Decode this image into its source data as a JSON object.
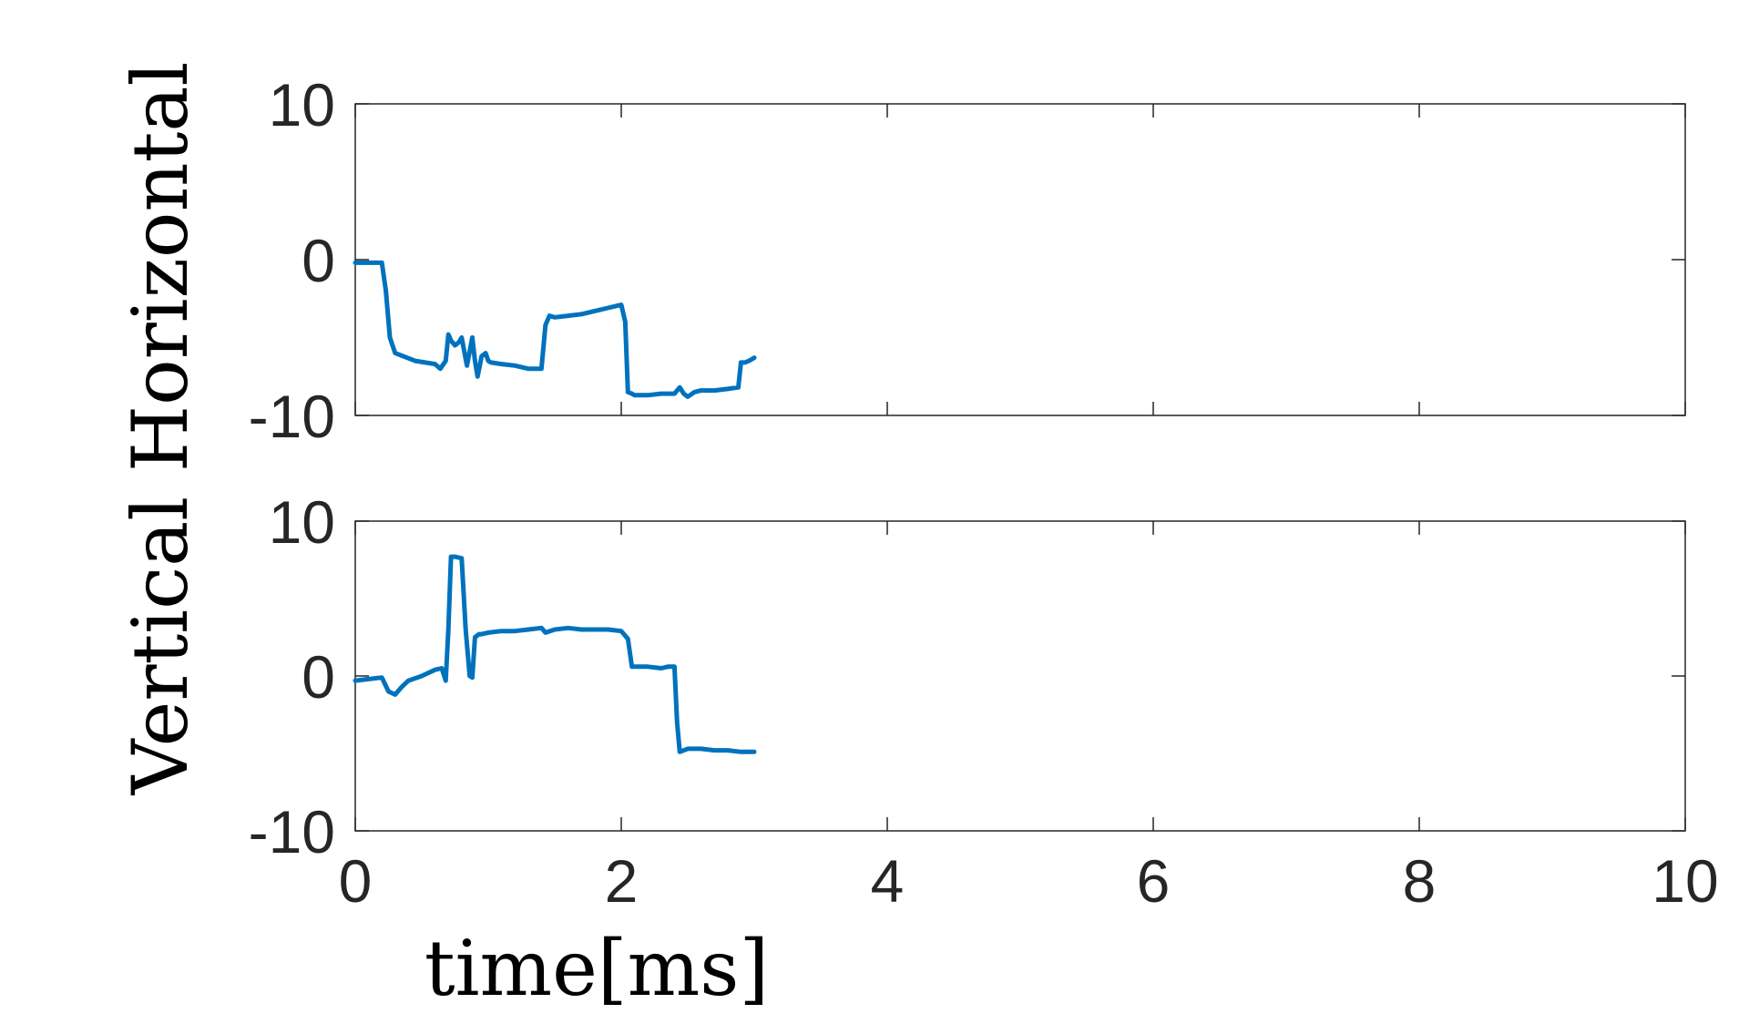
{
  "chart_data": {
    "type": "line",
    "shared_xlabel": "time[ms]",
    "shared_ylabel": "Vertical Horizontal",
    "x_tick_labels": [
      "0",
      "2",
      "4",
      "6",
      "8",
      "10"
    ],
    "y_tick_labels": [
      "10",
      "0",
      "-10"
    ],
    "line_color": "#0072BD",
    "subplots": [
      {
        "xlim": [
          0,
          10
        ],
        "ylim": [
          -10,
          10
        ],
        "series": [
          {
            "x": [
              0,
              0.2,
              0.23,
              0.26,
              0.3,
              0.45,
              0.6,
              0.64,
              0.68,
              0.7,
              0.72,
              0.75,
              0.78,
              0.8,
              0.84,
              0.88,
              0.9,
              0.92,
              0.95,
              0.98,
              1.0,
              1.02,
              1.1,
              1.2,
              1.3,
              1.4,
              1.43,
              1.46,
              1.5,
              1.6,
              1.7,
              1.8,
              1.9,
              2.0,
              2.03,
              2.05,
              2.08,
              2.1,
              2.2,
              2.3,
              2.4,
              2.44,
              2.47,
              2.5,
              2.55,
              2.6,
              2.7,
              2.8,
              2.88,
              2.9,
              2.93,
              2.96,
              3.0
            ],
            "y": [
              -0.2,
              -0.2,
              -2,
              -5,
              -6,
              -6.5,
              -6.7,
              -7,
              -6.5,
              -4.8,
              -5.2,
              -5.5,
              -5.3,
              -5,
              -6.8,
              -5,
              -6.5,
              -7.5,
              -6.2,
              -6,
              -6.5,
              -6.6,
              -6.7,
              -6.8,
              -7,
              -7,
              -4.2,
              -3.6,
              -3.7,
              -3.6,
              -3.5,
              -3.3,
              -3.1,
              -2.9,
              -4,
              -8.5,
              -8.6,
              -8.7,
              -8.7,
              -8.6,
              -8.6,
              -8.2,
              -8.6,
              -8.8,
              -8.5,
              -8.4,
              -8.4,
              -8.3,
              -8.2,
              -6.6,
              -6.6,
              -6.5,
              -6.3
            ]
          }
        ]
      },
      {
        "xlim": [
          0,
          10
        ],
        "ylim": [
          -10,
          10
        ],
        "series": [
          {
            "x": [
              0,
              0.1,
              0.2,
              0.25,
              0.3,
              0.35,
              0.4,
              0.5,
              0.6,
              0.65,
              0.68,
              0.7,
              0.72,
              0.75,
              0.8,
              0.83,
              0.86,
              0.88,
              0.9,
              0.93,
              0.95,
              1.0,
              1.1,
              1.2,
              1.3,
              1.4,
              1.43,
              1.5,
              1.6,
              1.7,
              1.8,
              1.9,
              2.0,
              2.05,
              2.08,
              2.1,
              2.2,
              2.3,
              2.35,
              2.4,
              2.42,
              2.44,
              2.5,
              2.6,
              2.7,
              2.8,
              2.9,
              3.0
            ],
            "y": [
              -0.3,
              -0.2,
              -0.1,
              -1,
              -1.2,
              -0.7,
              -0.3,
              0,
              0.4,
              0.5,
              -0.3,
              3,
              7.7,
              7.7,
              7.6,
              3,
              0,
              -0.1,
              2.5,
              2.7,
              2.7,
              2.8,
              2.9,
              2.9,
              3,
              3.1,
              2.8,
              3,
              3.1,
              3,
              3,
              3,
              2.9,
              2.4,
              0.6,
              0.6,
              0.6,
              0.5,
              0.6,
              0.6,
              -3,
              -4.9,
              -4.7,
              -4.7,
              -4.8,
              -4.8,
              -4.9,
              -4.9
            ]
          }
        ]
      }
    ]
  }
}
